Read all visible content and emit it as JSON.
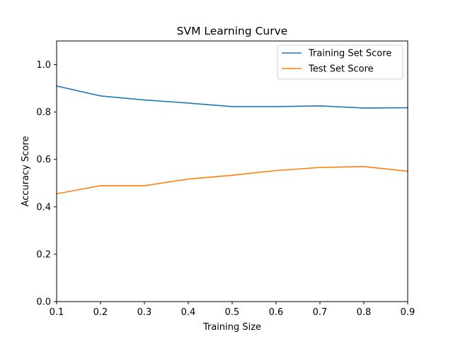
{
  "chart_data": {
    "type": "line",
    "title": "SVM Learning Curve",
    "xlabel": "Training Size",
    "ylabel": "Accuracy Score",
    "xlim": [
      0.1,
      0.9
    ],
    "ylim": [
      0.0,
      1.1
    ],
    "x": [
      0.1,
      0.2,
      0.3,
      0.4,
      0.5,
      0.6,
      0.7,
      0.8,
      0.9
    ],
    "x_ticks": [
      "0.1",
      "0.2",
      "0.3",
      "0.4",
      "0.5",
      "0.6",
      "0.7",
      "0.8",
      "0.9"
    ],
    "y_ticks": [
      "0.0",
      "0.2",
      "0.4",
      "0.6",
      "0.8",
      "1.0"
    ],
    "grid": false,
    "legend_position": "top-right",
    "series": [
      {
        "name": "Training Set Score",
        "color": "#1f77b4",
        "values": [
          0.91,
          0.868,
          0.851,
          0.838,
          0.823,
          0.823,
          0.826,
          0.817,
          0.818
        ]
      },
      {
        "name": "Test Set Score",
        "color": "#ff7f0e",
        "values": [
          0.455,
          0.489,
          0.489,
          0.517,
          0.533,
          0.553,
          0.566,
          0.57,
          0.55
        ]
      }
    ]
  }
}
